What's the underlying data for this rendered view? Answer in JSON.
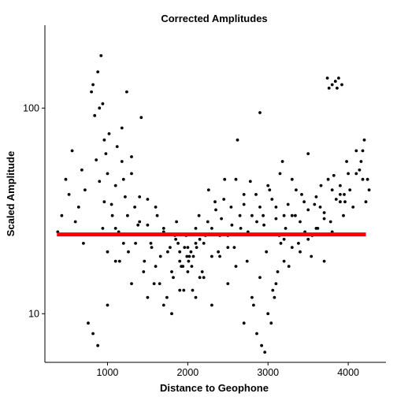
{
  "chart_data": {
    "type": "scatter",
    "title": "Corrected Amplitudes",
    "xlabel": "Distance to Geophone",
    "ylabel": "Scaled Amplitude",
    "x_scale": "linear",
    "y_scale": "log10",
    "xlim": [
      220,
      4470
    ],
    "ylim": [
      5.8,
      253
    ],
    "x_ticks": [
      {
        "value": 1000,
        "label": "1000"
      },
      {
        "value": 2000,
        "label": "2000"
      },
      {
        "value": 3000,
        "label": "3000"
      },
      {
        "value": 4000,
        "label": "4000"
      }
    ],
    "y_ticks": [
      {
        "value": 10,
        "label": "10"
      },
      {
        "value": 100,
        "label": "100"
      }
    ],
    "grid": false,
    "point_color": "#000000",
    "line_color": "#ff0000",
    "reference_line": {
      "y": 24.3,
      "x_start": 370,
      "x_end": 4220
    },
    "x": [
      380,
      430,
      480,
      520,
      560,
      600,
      640,
      680,
      700,
      720,
      760,
      800,
      820,
      840,
      860,
      880,
      900,
      920,
      940,
      960,
      980,
      1000,
      1020,
      1060,
      1100,
      1140,
      1180,
      1220,
      1260,
      1300,
      1340,
      1380,
      1420,
      1460,
      1500,
      1540,
      1580,
      1620,
      1660,
      1700,
      1740,
      1780,
      1820,
      1860,
      1900,
      1940,
      1980,
      2020,
      2060,
      2100,
      2140,
      2180,
      2220,
      2260,
      2300,
      2340,
      2380,
      2420,
      2460,
      2500,
      2540,
      2580,
      2620,
      2660,
      2700,
      2740,
      2780,
      2820,
      2860,
      2900,
      2940,
      2980,
      3020,
      3060,
      3100,
      3140,
      3180,
      3220,
      3260,
      3300,
      3340,
      3380,
      3420,
      3460,
      3500,
      3540,
      3580,
      3620,
      3660,
      3700,
      3740,
      3780,
      3820,
      3860,
      3900,
      3940,
      3980,
      4020,
      4060,
      4100,
      4140,
      4180,
      4220,
      4260,
      900,
      960,
      1000,
      1050,
      1100,
      1150,
      1200,
      1250,
      1300,
      1350,
      1400,
      1450,
      1500,
      1550,
      1600,
      1650,
      1700,
      1750,
      1800,
      1850,
      1900,
      1950,
      2000,
      2050,
      2100,
      2150,
      2200,
      2250,
      2300,
      2350,
      2400,
      2450,
      2500,
      2550,
      2600,
      2650,
      2700,
      2750,
      2800,
      2850,
      2900,
      2950,
      3000,
      3050,
      3100,
      3150,
      3200,
      3250,
      3300,
      3350,
      3400,
      3450,
      3500,
      3550,
      3600,
      3650,
      3700,
      3750,
      3800,
      3850,
      3900,
      3950,
      4000,
      1000,
      1100,
      1200,
      1300,
      1400,
      1500,
      1600,
      1700,
      1800,
      1900,
      2000,
      2100,
      2200,
      2300,
      2400,
      2500,
      2600,
      2700,
      2800,
      2900,
      3000,
      3100,
      3200,
      3300,
      3400,
      3500,
      3600,
      3700,
      3800,
      3900,
      1960,
      1990,
      2010,
      2040,
      1880,
      1920,
      2070,
      2110,
      1840,
      2150,
      820,
      880,
      940,
      1120,
      1180,
      1240,
      2860,
      2920,
      2960,
      3040,
      3080,
      3120,
      3160,
      3200,
      3760,
      3800,
      3840,
      3880,
      3920,
      3960,
      4160,
      4200,
      4240,
      4180,
      4100
    ],
    "y": [
      25,
      30,
      45,
      38,
      62,
      28,
      33,
      50,
      22,
      40,
      9,
      120,
      8,
      92,
      56,
      7,
      44,
      180,
      26,
      35,
      60,
      11,
      75,
      30,
      42,
      25,
      55,
      37,
      20,
      48,
      33,
      27,
      90,
      18,
      36,
      22,
      14,
      30,
      19,
      26,
      12,
      21,
      15,
      28,
      20,
      17,
      24,
      19,
      13,
      22,
      30,
      16,
      24,
      40,
      26,
      35,
      20,
      29,
      45,
      24,
      33,
      21,
      70,
      26,
      38,
      18,
      44,
      11,
      28,
      95,
      30,
      20,
      40,
      13,
      33,
      24,
      55,
      26,
      17,
      45,
      30,
      22,
      38,
      25,
      60,
      19,
      34,
      26,
      42,
      31,
      140,
      28,
      47,
      125,
      38,
      30,
      55,
      40,
      33,
      62,
      50,
      45,
      35,
      40,
      100,
      70,
      48,
      34,
      26,
      18,
      45,
      30,
      58,
      22,
      37,
      16,
      27,
      21,
      33,
      14,
      25,
      20,
      16,
      23,
      18,
      13,
      21,
      17,
      26,
      15,
      22,
      28,
      19,
      32,
      24,
      36,
      21,
      27,
      45,
      30,
      34,
      25,
      30,
      38,
      33,
      27,
      42,
      36,
      29,
      48,
      23,
      34,
      30,
      40,
      28,
      35,
      32,
      24,
      37,
      33,
      29,
      45,
      40,
      36,
      42,
      38,
      48,
      20,
      18,
      22,
      14,
      28,
      12,
      17,
      11,
      10,
      13,
      16,
      12,
      15,
      11,
      19,
      14,
      17,
      9,
      12,
      15,
      10,
      14,
      18,
      21,
      20,
      23,
      26,
      18,
      25,
      35,
      21,
      19,
      18,
      20,
      22,
      17,
      19,
      21,
      24,
      23,
      130,
      150,
      105,
      65,
      80,
      120,
      8,
      7,
      6.5,
      9,
      12,
      16,
      22,
      30,
      125,
      130,
      135,
      140,
      130,
      35,
      55,
      70,
      45,
      62,
      48
    ]
  }
}
